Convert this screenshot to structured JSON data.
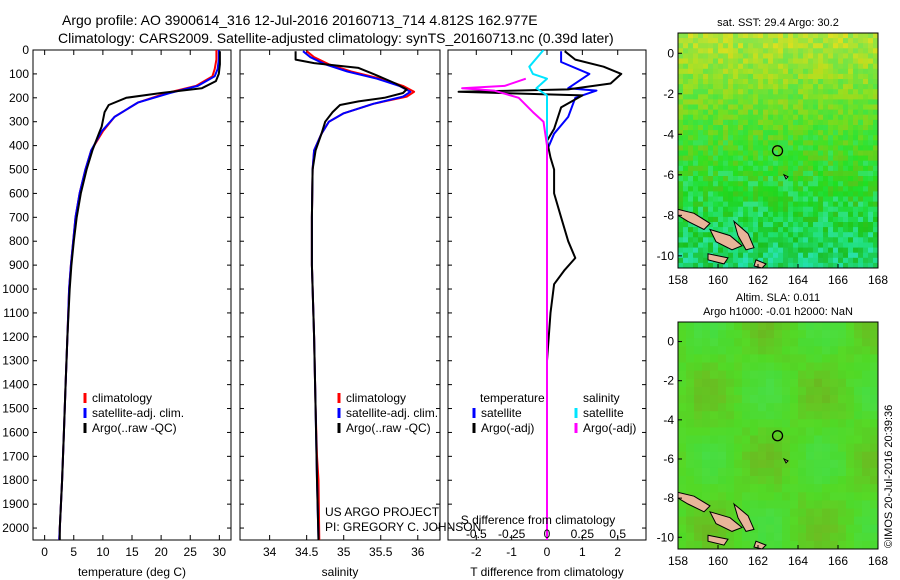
{
  "title_line1": "Argo profile: AO 3900614_316 12-Jul-2016 20160713_714 4.812S 162.977E",
  "title_line2": "Climatology: CARS2009. Satellite-adjusted climatology: synTS_20160713.nc (0.39d later)",
  "credit_line1": "US ARGO PROJECT",
  "credit_line2": "PI: GREGORY C. JOHNSON",
  "stamp": "©IMOS 20-Jul-2016 20:39:36",
  "colors": {
    "climatology": "#ff0000",
    "satellite": "#0000ff",
    "argo": "#000000",
    "satellite_salinity": "#00e5ff",
    "argo_salinity": "#ff00ff",
    "land": "#e8b59a"
  },
  "chart_data": [
    {
      "type": "line",
      "xlabel": "temperature (deg C)",
      "xlim": [
        -2,
        32
      ],
      "xticks": [
        0,
        5,
        10,
        15,
        20,
        25,
        30
      ],
      "ylim": [
        2050,
        0
      ],
      "yticks": [
        0,
        100,
        200,
        300,
        400,
        500,
        600,
        700,
        800,
        900,
        1000,
        1100,
        1200,
        1300,
        1400,
        1500,
        1600,
        1700,
        1800,
        1900,
        2000
      ],
      "legend": [
        "climatology",
        "satellite-adj. clim.",
        "Argo(..raw -QC)"
      ],
      "series": [
        {
          "name": "climatology",
          "color": "climatology",
          "points": [
            [
              29.5,
              0
            ],
            [
              29.5,
              40
            ],
            [
              29.2,
              80
            ],
            [
              28.8,
              110
            ],
            [
              26,
              150
            ],
            [
              21,
              180
            ],
            [
              16,
              220
            ],
            [
              12,
              280
            ],
            [
              10,
              340
            ],
            [
              8,
              420
            ],
            [
              7,
              500
            ],
            [
              6,
              600
            ],
            [
              5.3,
              700
            ],
            [
              4.9,
              800
            ],
            [
              4.5,
              900
            ],
            [
              4.2,
              1000
            ],
            [
              3.9,
              1200
            ],
            [
              3.6,
              1400
            ],
            [
              3.3,
              1600
            ],
            [
              3.0,
              1800
            ],
            [
              2.6,
              2000
            ],
            [
              2.5,
              2050
            ]
          ]
        },
        {
          "name": "satellite-adj. clim.",
          "color": "satellite",
          "points": [
            [
              29.9,
              0
            ],
            [
              29.9,
              40
            ],
            [
              29.7,
              80
            ],
            [
              29.2,
              110
            ],
            [
              26.3,
              150
            ],
            [
              21.5,
              180
            ],
            [
              16,
              220
            ],
            [
              12,
              280
            ],
            [
              9.8,
              340
            ],
            [
              8,
              420
            ],
            [
              7,
              500
            ],
            [
              6,
              600
            ],
            [
              5.3,
              700
            ],
            [
              4.9,
              800
            ],
            [
              4.5,
              900
            ],
            [
              4.2,
              1000
            ],
            [
              3.9,
              1200
            ],
            [
              3.6,
              1400
            ],
            [
              3.3,
              1600
            ],
            [
              3.0,
              1800
            ],
            [
              2.6,
              2000
            ],
            [
              2.5,
              2050
            ]
          ]
        },
        {
          "name": "Argo(..raw -QC)",
          "color": "argo",
          "points": [
            [
              30.1,
              5
            ],
            [
              30.1,
              60
            ],
            [
              29.9,
              100
            ],
            [
              29.4,
              130
            ],
            [
              27,
              160
            ],
            [
              20,
              180
            ],
            [
              14,
              200
            ],
            [
              11,
              230
            ],
            [
              10.3,
              260
            ],
            [
              9.8,
              320
            ],
            [
              9.3,
              350
            ],
            [
              8.2,
              420
            ],
            [
              7.2,
              500
            ],
            [
              6.2,
              600
            ],
            [
              5.5,
              700
            ],
            [
              5,
              800
            ],
            [
              4.6,
              900
            ],
            [
              4.3,
              1000
            ],
            [
              3.9,
              1200
            ],
            [
              3.6,
              1400
            ],
            [
              3.3,
              1600
            ],
            [
              3.0,
              1800
            ],
            [
              2.6,
              2000
            ],
            [
              2.6,
              2050
            ]
          ]
        }
      ]
    },
    {
      "type": "line",
      "xlabel": "salinity",
      "xlim": [
        33.6,
        36.3
      ],
      "xticks": [
        34,
        34.5,
        35,
        35.5,
        36
      ],
      "ylim": [
        2050,
        0
      ],
      "legend": [
        "climatology",
        "satellite-adj. clim.",
        "Argo(..raw -QC)"
      ],
      "series": [
        {
          "name": "climatology",
          "color": "climatology",
          "points": [
            [
              34.5,
              5
            ],
            [
              34.6,
              30
            ],
            [
              34.8,
              60
            ],
            [
              35.1,
              90
            ],
            [
              35.5,
              120
            ],
            [
              35.8,
              150
            ],
            [
              35.95,
              175
            ],
            [
              35.85,
              195
            ],
            [
              35.4,
              225
            ],
            [
              35,
              265
            ],
            [
              34.8,
              300
            ],
            [
              34.7,
              350
            ],
            [
              34.6,
              420
            ],
            [
              34.58,
              500
            ],
            [
              34.57,
              700
            ],
            [
              34.57,
              900
            ],
            [
              34.6,
              1200
            ],
            [
              34.62,
              1500
            ],
            [
              34.64,
              1700
            ],
            [
              34.66,
              1800
            ],
            [
              34.67,
              2050
            ]
          ]
        },
        {
          "name": "satellite-adj. clim.",
          "color": "satellite",
          "points": [
            [
              34.45,
              5
            ],
            [
              34.55,
              30
            ],
            [
              34.75,
              60
            ],
            [
              35.05,
              90
            ],
            [
              35.45,
              120
            ],
            [
              35.75,
              150
            ],
            [
              35.9,
              175
            ],
            [
              35.8,
              195
            ],
            [
              35.4,
              225
            ],
            [
              35,
              265
            ],
            [
              34.8,
              300
            ],
            [
              34.7,
              350
            ],
            [
              34.6,
              420
            ],
            [
              34.58,
              500
            ],
            [
              34.57,
              700
            ],
            [
              34.57,
              900
            ],
            [
              34.6,
              1200
            ],
            [
              34.62,
              1500
            ],
            [
              34.64,
              1800
            ],
            [
              34.66,
              2050
            ]
          ]
        },
        {
          "name": "Argo(..raw -QC)",
          "color": "argo",
          "points": [
            [
              34.35,
              5
            ],
            [
              34.35,
              40
            ],
            [
              34.6,
              55
            ],
            [
              34.9,
              65
            ],
            [
              35.2,
              75
            ],
            [
              35.4,
              100
            ],
            [
              35.7,
              140
            ],
            [
              35.85,
              165
            ],
            [
              35.8,
              180
            ],
            [
              35.55,
              200
            ],
            [
              35.2,
              215
            ],
            [
              34.95,
              230
            ],
            [
              34.85,
              260
            ],
            [
              34.75,
              300
            ],
            [
              34.7,
              350
            ],
            [
              34.62,
              420
            ],
            [
              34.58,
              500
            ],
            [
              34.57,
              700
            ],
            [
              34.57,
              900
            ],
            [
              34.6,
              1200
            ],
            [
              34.62,
              1500
            ],
            [
              34.64,
              1800
            ],
            [
              34.66,
              2050
            ]
          ]
        }
      ]
    },
    {
      "type": "line",
      "xlabel": "T difference from climatology",
      "xlabel_top": "S difference from climatology",
      "xlim": [
        -2.8,
        2.8
      ],
      "xticks": [
        -2,
        -1,
        0,
        1,
        2
      ],
      "xticks_top": [
        "-0.5",
        "-0.25",
        "0",
        "0.25",
        "0.5"
      ],
      "ylim": [
        2050,
        0
      ],
      "legend_titles": [
        "temperature",
        "salinity"
      ],
      "legend": [
        "satellite",
        "Argo(-adj)",
        "satellite",
        "Argo(-adj)"
      ],
      "series": [
        {
          "name": "temperature satellite",
          "color": "satellite",
          "points": [
            [
              0.4,
              5
            ],
            [
              0.4,
              50
            ],
            [
              1.2,
              100
            ],
            [
              0.6,
              160
            ],
            [
              1.4,
              170
            ],
            [
              0.8,
              200
            ],
            [
              0.6,
              280
            ],
            [
              0.2,
              350
            ],
            [
              0,
              420
            ],
            [
              0,
              700
            ],
            [
              0,
              1000
            ],
            [
              0,
              1600
            ],
            [
              0,
              1800
            ],
            [
              0,
              2050
            ]
          ]
        },
        {
          "name": "temperature Argo(-adj)",
          "color": "argo",
          "points": [
            [
              0.5,
              5
            ],
            [
              0.8,
              40
            ],
            [
              1.6,
              70
            ],
            [
              2.1,
              100
            ],
            [
              1.8,
              140
            ],
            [
              0.6,
              165
            ],
            [
              -2.5,
              175
            ],
            [
              1.0,
              190
            ],
            [
              0.4,
              240
            ],
            [
              0.2,
              330
            ],
            [
              0,
              380
            ],
            [
              0.1,
              450
            ],
            [
              0.2,
              500
            ],
            [
              0.2,
              600
            ],
            [
              0.4,
              700
            ],
            [
              0.6,
              800
            ],
            [
              0.8,
              870
            ],
            [
              0.5,
              920
            ],
            [
              0.2,
              980
            ],
            [
              0.1,
              1100
            ],
            [
              0,
              1300
            ],
            [
              0,
              1600
            ],
            [
              0,
              2050
            ]
          ]
        },
        {
          "name": "salinity satellite",
          "color": "satellite_salinity",
          "points": [
            [
              -0.1,
              0
            ],
            [
              -0.5,
              70
            ],
            [
              -0.4,
              100
            ],
            [
              0,
              120
            ],
            [
              -0.3,
              160
            ],
            [
              0,
              190
            ],
            [
              0,
              400
            ],
            [
              0,
              1000
            ],
            [
              0,
              1600
            ],
            [
              0,
              2050
            ]
          ]
        },
        {
          "name": "salinity Argo(-adj)",
          "color": "argo_salinity",
          "points": [
            [
              -0.6,
              120
            ],
            [
              -1.2,
              150
            ],
            [
              -2.4,
              160
            ],
            [
              -1.5,
              170
            ],
            [
              -0.8,
              200
            ],
            [
              -0.4,
              260
            ],
            [
              -0.1,
              300
            ],
            [
              0,
              400
            ],
            [
              0,
              1000
            ],
            [
              0,
              2050
            ]
          ]
        }
      ]
    },
    {
      "type": "heatmap",
      "title": "sat. SST: 29.4 Argo: 30.2",
      "xlim": [
        158,
        168
      ],
      "ylim": [
        -10.6,
        1
      ],
      "xticks": [
        158,
        160,
        162,
        164,
        166,
        168
      ],
      "yticks": [
        0,
        -2,
        -4,
        -6,
        -8,
        -10
      ],
      "marker": [
        162.977,
        -4.812
      ]
    },
    {
      "type": "heatmap",
      "title_line1": "Altim. SLA: 0.011",
      "title_line2": "Argo h1000: -0.01 h2000: NaN",
      "xlim": [
        158,
        168
      ],
      "ylim": [
        -10.6,
        1
      ],
      "xticks": [
        158,
        160,
        162,
        164,
        166,
        168
      ],
      "yticks": [
        0,
        -2,
        -4,
        -6,
        -8,
        -10
      ],
      "marker": [
        162.977,
        -4.812
      ]
    }
  ]
}
